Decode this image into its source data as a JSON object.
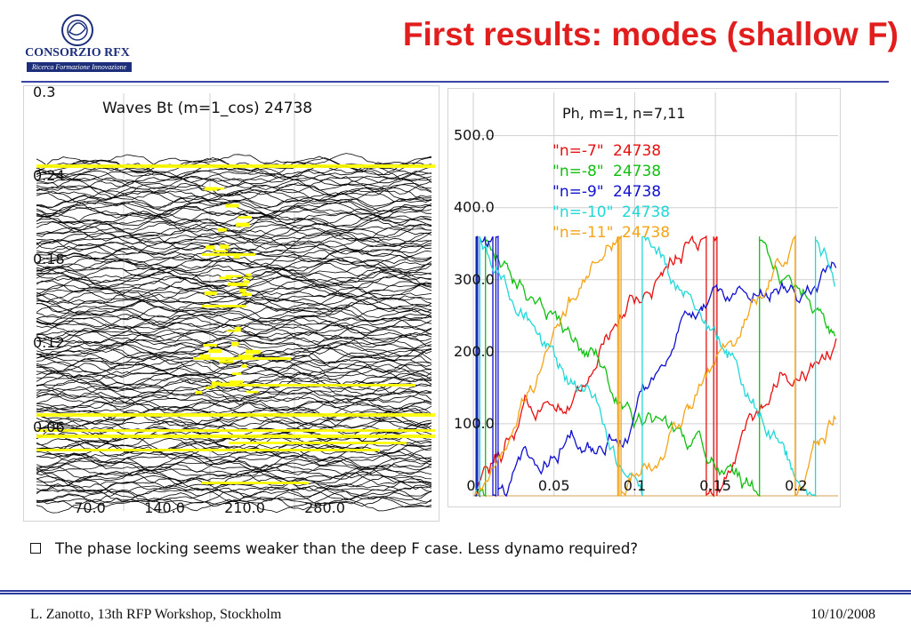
{
  "logo": {
    "name": "CONSORZIO RFX",
    "tagline": "Ricerca Formazione Innovazione"
  },
  "slide": {
    "title": "First results: modes (shallow F)"
  },
  "bullet": "The phase locking seems weaker than the deep F case. Less dynamo required?",
  "footer": {
    "left": "L. Zanotto, 13th RFP Workshop, Stockholm",
    "right": "10/10/2008"
  },
  "colors": {
    "title": "#e21d1d",
    "rule": "#2a3aa0",
    "waterfall_line": "#000000",
    "waterfall_highlight": "#ffff00"
  },
  "chart_data": [
    {
      "type": "line",
      "title": "Waves Bt (m=1_cos) 24738",
      "description_type": "waterfall",
      "y_tick_labels": [
        "0.3",
        "0.24",
        "0.18",
        "0.12",
        "0.06"
      ],
      "x_tick_labels": [
        "70.0",
        "140.0",
        "210.0",
        "280.0"
      ],
      "ylim": [
        0.0,
        0.3
      ],
      "xlim": [
        0,
        360
      ],
      "grid": true,
      "highlight_color": "yellow"
    },
    {
      "type": "line",
      "title": "Ph, m=1, n=7,11",
      "x_tick_labels": [
        "0.",
        "0.05",
        "0.1",
        "0.15",
        "0.2"
      ],
      "y_tick_labels": [
        "500.0",
        "400.0",
        "300.0",
        "200.0",
        "100.0"
      ],
      "x_ticks": [
        0,
        0.05,
        0.1,
        0.15,
        0.2
      ],
      "y_ticks": [
        500,
        400,
        300,
        200,
        100
      ],
      "xlim": [
        0,
        0.226
      ],
      "ylim": [
        0,
        560
      ],
      "grid": true,
      "legend_position": "top-center",
      "series": [
        {
          "name": "\"n=-7\"",
          "number": "24738",
          "color": "#e81010",
          "phase_range": [
            0,
            360
          ]
        },
        {
          "name": "\"n=-8\"",
          "number": "24738",
          "color": "#10c010",
          "phase_range": [
            0,
            360
          ]
        },
        {
          "name": "\"n=-9\"",
          "number": "24738",
          "color": "#1010d0",
          "phase_range": [
            0,
            360
          ]
        },
        {
          "name": "\"n=-10\"",
          "number": "24738",
          "color": "#20d8d8",
          "phase_range": [
            0,
            360
          ]
        },
        {
          "name": "\"n=-11\"",
          "number": "24738",
          "color": "#f4a416",
          "phase_range": [
            0,
            360
          ]
        }
      ]
    }
  ]
}
